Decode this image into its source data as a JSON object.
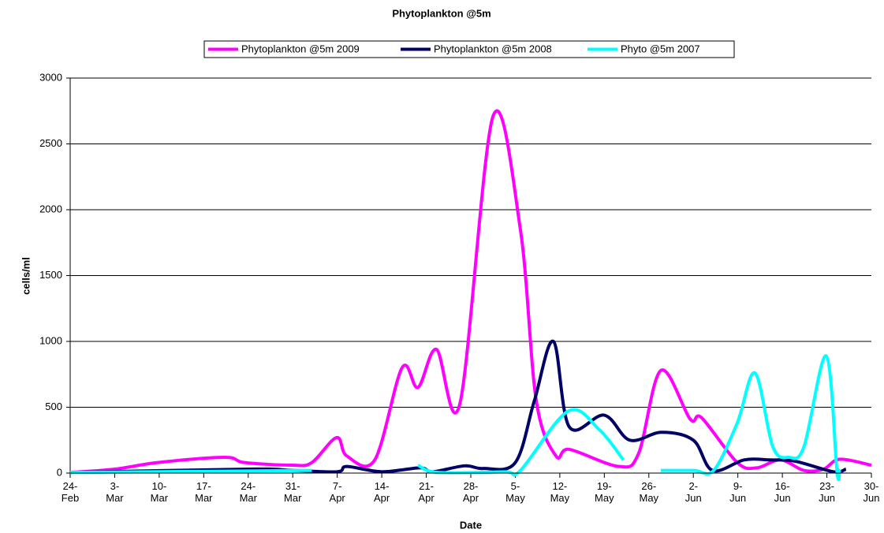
{
  "chart_data": {
    "type": "line",
    "title": "Phytoplankton @5m",
    "x_label": "Date",
    "y_label": "cells/ml",
    "xlim": [
      0,
      126
    ],
    "xticks": [
      {
        "value": 0,
        "label": "24-Feb"
      },
      {
        "value": 7,
        "label": "3-Mar"
      },
      {
        "value": 14,
        "label": "10-Mar"
      },
      {
        "value": 21,
        "label": "17-Mar"
      },
      {
        "value": 28,
        "label": "24-Mar"
      },
      {
        "value": 35,
        "label": "31-Mar"
      },
      {
        "value": 42,
        "label": "7-Apr"
      },
      {
        "value": 49,
        "label": "14-Apr"
      },
      {
        "value": 56,
        "label": "21-Apr"
      },
      {
        "value": 63,
        "label": "28-Apr"
      },
      {
        "value": 70,
        "label": "5-May"
      },
      {
        "value": 77,
        "label": "12-May"
      },
      {
        "value": 84,
        "label": "19-May"
      },
      {
        "value": 91,
        "label": "26-May"
      },
      {
        "value": 98,
        "label": "2-Jun"
      },
      {
        "value": 105,
        "label": "9-Jun"
      },
      {
        "value": 112,
        "label": "16-Jun"
      },
      {
        "value": 119,
        "label": "23-Jun"
      },
      {
        "value": 126,
        "label": "30-Jun"
      }
    ],
    "ylim": [
      0,
      3000
    ],
    "yticks": [
      0,
      500,
      1000,
      1500,
      2000,
      2500,
      3000
    ],
    "grid": true,
    "series": [
      {
        "name": "Phytoplankton @5m 2009",
        "color": "#ff00ff",
        "x": [
          0,
          7,
          13.8,
          24.3,
          27.4,
          34.9,
          38,
          41.9,
          43.5,
          47.9,
          52.2,
          54.7,
          57.6,
          61.3,
          66.5,
          70.8,
          73.3,
          76.4,
          78.5,
          86.3,
          89.4,
          92.9,
          97.5,
          99.3,
          104.9,
          108,
          111.7,
          115.4,
          118.5,
          121,
          126
        ],
        "values": [
          5,
          30,
          80,
          120,
          80,
          60,
          80,
          270,
          130,
          100,
          800,
          650,
          940,
          530,
          2710,
          1850,
          550,
          130,
          180,
          50,
          150,
          780,
          410,
          420,
          80,
          40,
          100,
          20,
          30,
          105,
          60
        ]
      },
      {
        "name": "Phytoplankton @5m 2008",
        "color": "#000066",
        "x": [
          0,
          28,
          35,
          42,
          43.5,
          49,
          55,
          57,
          62,
          65,
          70,
          73,
          76,
          78.5,
          84,
          88,
          93,
          98,
          101,
          106,
          110,
          114,
          120,
          122
        ],
        "values": [
          5,
          30,
          20,
          10,
          50,
          10,
          40,
          10,
          55,
          35,
          80,
          550,
          1000,
          350,
          440,
          250,
          310,
          250,
          20,
          100,
          100,
          90,
          10,
          30
        ]
      },
      {
        "name": "Phyto @5m 2007",
        "color": "#00ffff",
        "x": [
          0,
          38,
          46,
          54.7,
          57.8,
          68.3,
          70.8,
          78.3,
          83.2,
          87,
          90,
          92.9,
          98.1,
          101.2,
          104.9,
          107.7,
          110.5,
          113,
          115.4,
          118.9,
          120.6,
          121
        ],
        "values": [
          5,
          20,
          null,
          60,
          5,
          10,
          20,
          470,
          330,
          100,
          null,
          20,
          20,
          20,
          380,
          760,
          200,
          120,
          200,
          890,
          10,
          30
        ]
      }
    ]
  }
}
